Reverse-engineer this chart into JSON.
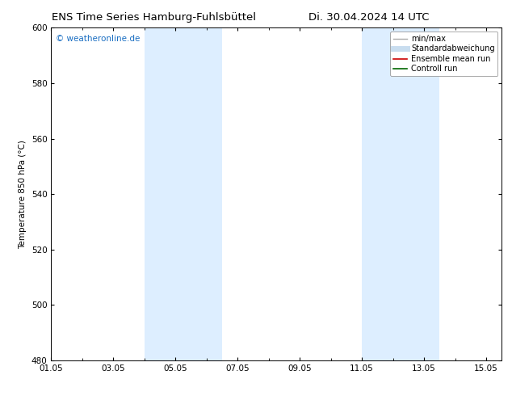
{
  "title_left": "ENS Time Series Hamburg-Fuhlsbüttel",
  "title_right": "Di. 30.04.2024 14 UTC",
  "ylabel": "Temperature 850 hPa (°C)",
  "watermark": "© weatheronline.de",
  "watermark_color": "#1a6ec2",
  "ylim": [
    480,
    600
  ],
  "yticks": [
    480,
    500,
    520,
    540,
    560,
    580,
    600
  ],
  "xlim_start": 0.0,
  "xlim_end": 14.5,
  "xtick_labels": [
    "01.05",
    "03.05",
    "05.05",
    "07.05",
    "09.05",
    "11.05",
    "13.05",
    "15.05"
  ],
  "xtick_positions": [
    0.0,
    2.0,
    4.0,
    6.0,
    8.0,
    10.0,
    12.0,
    14.0
  ],
  "shaded_bands": [
    {
      "x_start": 3.0,
      "x_end": 5.5
    },
    {
      "x_start": 10.0,
      "x_end": 12.5
    }
  ],
  "shade_color": "#ddeeff",
  "background_color": "#ffffff",
  "legend_entries": [
    {
      "label": "min/max",
      "color": "#aaaaaa",
      "lw": 1.0
    },
    {
      "label": "Standardabweichung",
      "color": "#c8ddef",
      "lw": 5.0
    },
    {
      "label": "Ensemble mean run",
      "color": "#cc0000",
      "lw": 1.2
    },
    {
      "label": "Controll run",
      "color": "#006600",
      "lw": 1.2
    }
  ],
  "title_fontsize": 9.5,
  "tick_fontsize": 7.5,
  "ylabel_fontsize": 7.5,
  "watermark_fontsize": 7.5,
  "legend_fontsize": 7.0
}
